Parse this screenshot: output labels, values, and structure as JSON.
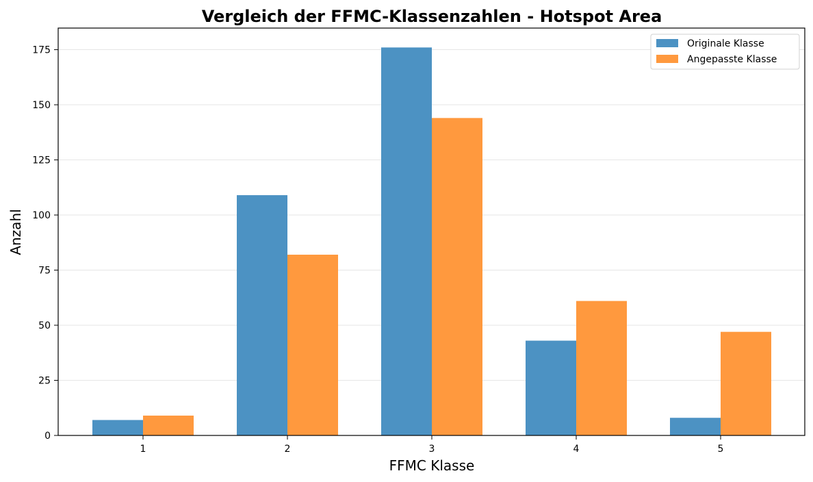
{
  "chart_data": {
    "type": "bar",
    "title": "Vergleich der FFMC-Klassenzahlen - Hotspot Area",
    "xlabel": "FFMC Klasse",
    "ylabel": "Anzahl",
    "categories": [
      "1",
      "2",
      "3",
      "4",
      "5"
    ],
    "series": [
      {
        "name": "Originale Klasse",
        "color": "#4c92c3",
        "values": [
          7,
          109,
          176,
          43,
          8
        ]
      },
      {
        "name": "Angepasste Klasse",
        "color": "#ff993e",
        "values": [
          9,
          82,
          144,
          61,
          47
        ]
      }
    ],
    "ylim": [
      0,
      184.8
    ],
    "yticks": [
      0,
      25,
      50,
      75,
      100,
      125,
      150,
      175
    ],
    "grid": true,
    "legend_position": "top-right"
  }
}
